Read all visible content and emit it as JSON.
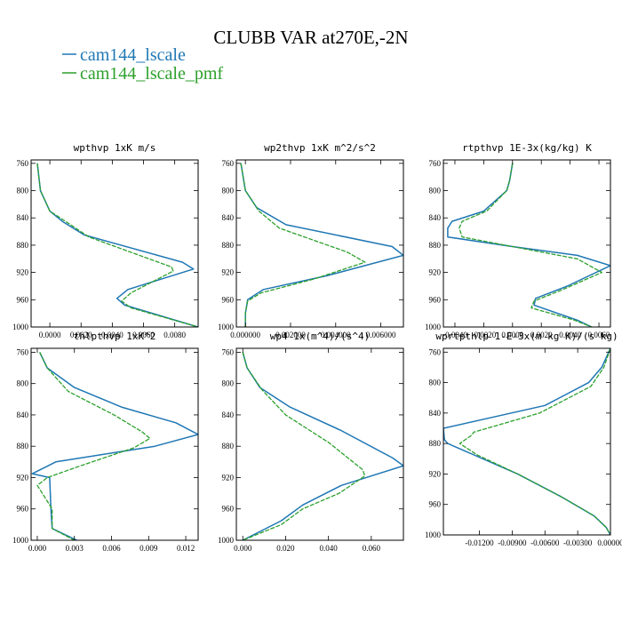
{
  "figure": {
    "title": "CLUBB VAR at270E,-2N"
  },
  "legend": [
    {
      "name": "cam144_lscale",
      "color": "#1f77b4"
    },
    {
      "name": "cam144_lscale_pmf",
      "color": "#2ca02c"
    }
  ],
  "chart_data": [
    {
      "type": "line",
      "title": "wpthvp   1xK m/s",
      "xlim": [
        -0.0012,
        0.0095
      ],
      "ylim": [
        1000,
        755
      ],
      "y_inverted": true,
      "xticks": [
        0.0,
        0.002,
        0.004,
        0.006,
        0.008
      ],
      "xtick_labels": [
        "0.0000",
        "0.0020",
        "0.0040",
        "0.0060",
        "0.0080"
      ],
      "yticks": [
        760,
        800,
        840,
        880,
        920,
        960,
        1000
      ],
      "series": [
        {
          "name": "cam144_lscale",
          "y": [
            760,
            800,
            830,
            845,
            865,
            905,
            915,
            945,
            958,
            968,
            1000
          ],
          "x": [
            -0.0008,
            -0.0006,
            0.0,
            0.0008,
            0.0022,
            0.0085,
            0.0092,
            0.005,
            0.0043,
            0.0048,
            0.0095
          ]
        },
        {
          "name": "cam144_lscale_pmf",
          "y": [
            760,
            800,
            830,
            845,
            868,
            912,
            918,
            950,
            962,
            972,
            1000
          ],
          "x": [
            -0.0008,
            -0.0006,
            0.0,
            0.001,
            0.0025,
            0.0078,
            0.0079,
            0.0052,
            0.0046,
            0.0052,
            0.0095
          ]
        }
      ]
    },
    {
      "type": "line",
      "title": "wp2thvp   1xK m^2/s^2",
      "xlim": [
        -0.0004,
        0.007
      ],
      "ylim": [
        1000,
        755
      ],
      "y_inverted": true,
      "xticks": [
        0.0,
        0.002,
        0.004,
        0.006
      ],
      "xtick_labels": [
        "0.000000",
        "0.002000",
        "0.004000",
        "0.006000"
      ],
      "yticks": [
        760,
        800,
        840,
        880,
        920,
        960,
        1000
      ],
      "series": [
        {
          "name": "cam144_lscale",
          "y": [
            760,
            800,
            825,
            850,
            882,
            895,
            925,
            945,
            960,
            980,
            1000
          ],
          "x": [
            -0.0002,
            0.0,
            0.0005,
            0.0018,
            0.0065,
            0.007,
            0.0036,
            0.0008,
            0.0001,
            0.0,
            0.0
          ]
        },
        {
          "name": "cam144_lscale_pmf",
          "y": [
            760,
            800,
            830,
            855,
            890,
            905,
            930,
            950,
            962,
            980,
            1000
          ],
          "x": [
            -0.0002,
            0.0,
            0.0006,
            0.0015,
            0.0045,
            0.0053,
            0.003,
            0.0007,
            0.0001,
            0.0,
            0.0
          ]
        }
      ]
    },
    {
      "type": "line",
      "title": "rtpthvp   1E-3x(kg/kg) K",
      "xlim": [
        -0.0048,
        0.0068
      ],
      "ylim": [
        1000,
        755
      ],
      "y_inverted": true,
      "xticks": [
        -0.004,
        -0.002,
        0.0,
        0.002,
        0.004,
        0.006
      ],
      "xtick_labels": [
        "-0.0040",
        "-0.0020",
        "0.0000",
        "0.0020",
        "0.0040",
        "0.0060"
      ],
      "yticks": [
        760,
        800,
        840,
        880,
        920,
        960,
        1000
      ],
      "series": [
        {
          "name": "cam144_lscale",
          "y": [
            760,
            785,
            800,
            830,
            845,
            855,
            868,
            882,
            895,
            910,
            940,
            958,
            968,
            990,
            1000
          ],
          "x": [
            0.0,
            -0.0002,
            -0.0004,
            -0.002,
            -0.0042,
            -0.0045,
            -0.0045,
            0.0,
            0.0045,
            0.0068,
            0.0038,
            0.0016,
            0.0015,
            0.0045,
            0.0055
          ]
        },
        {
          "name": "cam144_lscale_pmf",
          "y": [
            760,
            785,
            800,
            830,
            845,
            855,
            868,
            882,
            900,
            920,
            945,
            962,
            972,
            990,
            1000
          ],
          "x": [
            0.0,
            -0.0002,
            -0.0004,
            -0.0018,
            -0.0035,
            -0.0037,
            -0.0035,
            0.0,
            0.0045,
            0.0062,
            0.0035,
            0.0015,
            0.0013,
            0.0043,
            0.0055
          ]
        }
      ]
    },
    {
      "type": "line",
      "title": "thlpthvp   1xK^2",
      "xlim": [
        -0.0005,
        0.013
      ],
      "ylim": [
        1000,
        755
      ],
      "y_inverted": true,
      "xticks": [
        0.0,
        0.003,
        0.006,
        0.009,
        0.012
      ],
      "xtick_labels": [
        "0.000",
        "0.003",
        "0.006",
        "0.009",
        "0.012"
      ],
      "yticks": [
        760,
        800,
        840,
        880,
        920,
        960,
        1000
      ],
      "series": [
        {
          "name": "cam144_lscale",
          "y": [
            760,
            780,
            805,
            830,
            850,
            865,
            880,
            900,
            915,
            920,
            960,
            985,
            1000
          ],
          "x": [
            0.0002,
            0.0008,
            0.003,
            0.0068,
            0.0112,
            0.013,
            0.0095,
            0.0015,
            -0.0004,
            0.001,
            0.0011,
            0.0012,
            0.0032
          ]
        },
        {
          "name": "cam144_lscale_pmf",
          "y": [
            760,
            780,
            810,
            840,
            862,
            870,
            882,
            905,
            920,
            930,
            960,
            985,
            1000
          ],
          "x": [
            0.0002,
            0.0008,
            0.0025,
            0.0062,
            0.0085,
            0.0091,
            0.0078,
            0.0035,
            0.0008,
            0.0,
            0.0012,
            0.0012,
            0.003
          ]
        }
      ]
    },
    {
      "type": "line",
      "title": "wp4   1x(m^4)/(s^4)",
      "xlim": [
        -0.003,
        0.075
      ],
      "ylim": [
        1000,
        755
      ],
      "y_inverted": true,
      "xticks": [
        0.0,
        0.02,
        0.04,
        0.06
      ],
      "xtick_labels": [
        "0.000",
        "0.020",
        "0.040",
        "0.060"
      ],
      "yticks": [
        760,
        800,
        840,
        880,
        920,
        960,
        1000
      ],
      "series": [
        {
          "name": "cam144_lscale",
          "y": [
            760,
            780,
            805,
            830,
            860,
            895,
            905,
            930,
            955,
            975,
            1000
          ],
          "x": [
            0.0,
            0.002,
            0.008,
            0.022,
            0.046,
            0.07,
            0.075,
            0.046,
            0.028,
            0.018,
            0.0
          ]
        },
        {
          "name": "cam144_lscale_pmf",
          "y": [
            760,
            780,
            808,
            840,
            875,
            910,
            918,
            940,
            960,
            980,
            1000
          ],
          "x": [
            0.0,
            0.002,
            0.009,
            0.02,
            0.04,
            0.056,
            0.057,
            0.045,
            0.028,
            0.018,
            0.0
          ]
        }
      ]
    },
    {
      "type": "line",
      "title": "wprtpthlp   1-E-3x(m kg K)/(s kg)",
      "xlim": [
        -0.0153,
        0.0
      ],
      "ylim": [
        1000,
        755
      ],
      "y_inverted": true,
      "xticks": [
        -0.012,
        -0.009,
        -0.006,
        -0.003,
        0.0
      ],
      "xtick_labels": [
        "-0.01200",
        "-0.00900",
        "-0.00600",
        "-0.00300",
        "0.00000"
      ],
      "yticks": [
        760,
        800,
        840,
        880,
        920,
        960,
        1000
      ],
      "series": [
        {
          "name": "cam144_lscale",
          "y": [
            755,
            780,
            800,
            830,
            860,
            875,
            880,
            895,
            920,
            950,
            975,
            990,
            1000
          ],
          "x": [
            0.0,
            -0.0008,
            -0.002,
            -0.006,
            -0.0153,
            -0.0152,
            -0.0149,
            -0.0125,
            -0.0085,
            -0.0045,
            -0.0015,
            -0.0004,
            0.0
          ]
        },
        {
          "name": "cam144_lscale_pmf",
          "y": [
            755,
            780,
            805,
            840,
            865,
            870,
            880,
            895,
            920,
            950,
            975,
            990,
            1000
          ],
          "x": [
            0.0,
            -0.0006,
            -0.0018,
            -0.0065,
            -0.0125,
            -0.0128,
            -0.0138,
            -0.0122,
            -0.0085,
            -0.0045,
            -0.0015,
            -0.0004,
            0.0
          ]
        }
      ]
    }
  ]
}
